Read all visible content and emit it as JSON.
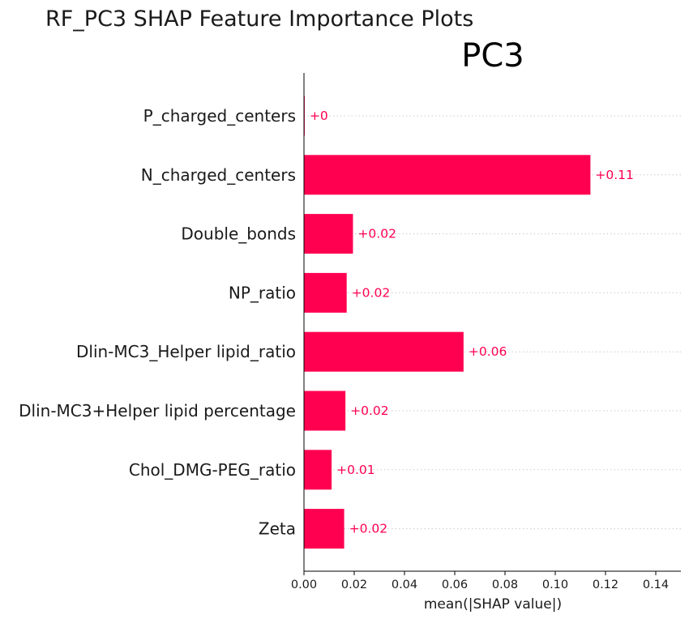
{
  "figure_title": "RF_PC3 SHAP Feature Importance Plots",
  "chart_data": {
    "type": "bar",
    "orientation": "horizontal",
    "title": "PC3",
    "xlabel": "mean(|SHAP value|)",
    "ylabel": "",
    "categories": [
      "P_charged_centers",
      "N_charged_centers",
      "Double_bonds",
      "NP_ratio",
      "Dlin-MC3_Helper lipid_ratio",
      "Dlin-MC3+Helper lipid percentage",
      "Chol_DMG-PEG_ratio",
      "Zeta"
    ],
    "values": [
      0.0003,
      0.114,
      0.0195,
      0.017,
      0.0635,
      0.0165,
      0.011,
      0.016
    ],
    "data_labels": [
      "+0",
      "+0.11",
      "+0.02",
      "+0.02",
      "+0.06",
      "+0.02",
      "+0.01",
      "+0.02"
    ],
    "xlim": [
      0,
      0.15
    ],
    "xticks": [
      0.0,
      0.02,
      0.04,
      0.06,
      0.08,
      0.1,
      0.12,
      0.14
    ],
    "xtick_labels": [
      "0.00",
      "0.02",
      "0.04",
      "0.06",
      "0.08",
      "0.10",
      "0.12",
      "0.14"
    ],
    "bar_color": "#ff0051",
    "grid": "horizontal dotted lines per category"
  }
}
